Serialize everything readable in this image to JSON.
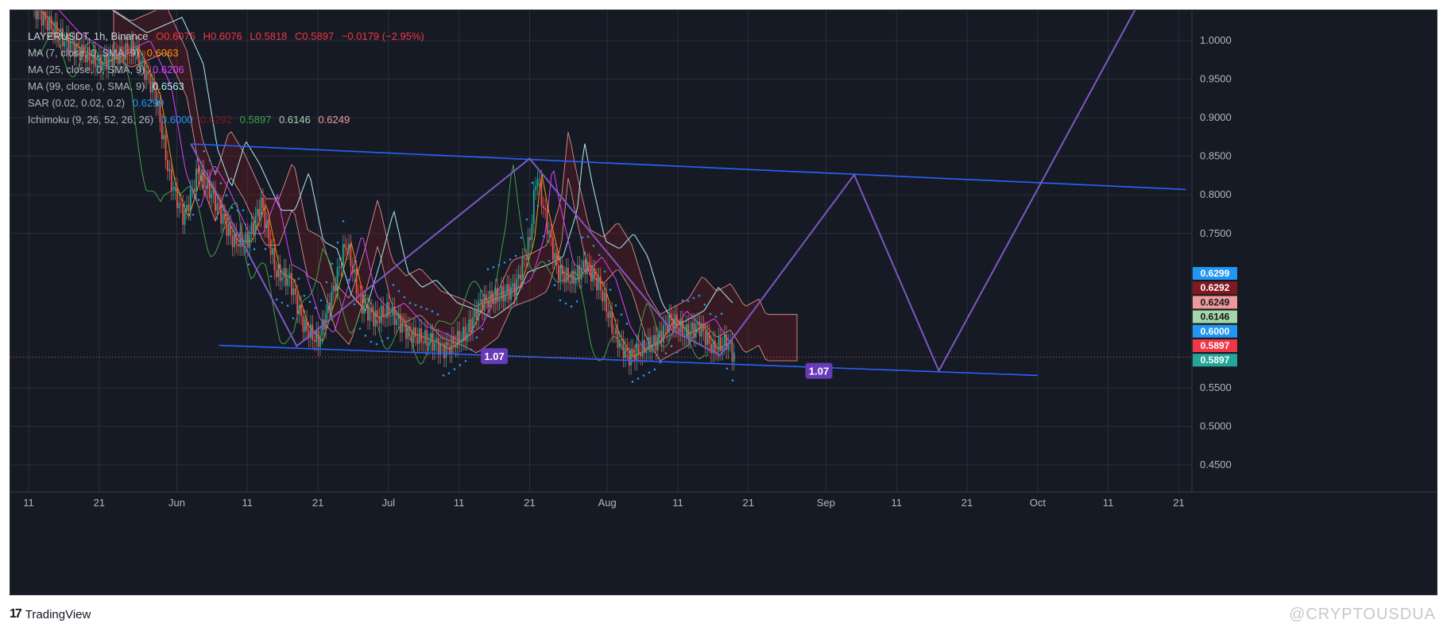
{
  "legend": {
    "symbol_line": [
      "LAYERUSDT, 1h, Binance",
      "O0.6075",
      "H0.6076",
      "L0.5818",
      "C0.5897",
      "−0.0179 (−2.95%)"
    ],
    "ma7": [
      "MA (7, close, 0, SMA, 9)",
      "0.6063"
    ],
    "ma25": [
      "MA (25, close, 0, SMA, 9)",
      "0.6206"
    ],
    "ma99": [
      "MA (99, close, 0, SMA, 9)",
      "0.6563"
    ],
    "sar": [
      "SAR (0.02, 0.02, 0.2)",
      "0.6299"
    ],
    "ichimoku": [
      "Ichimoku (9, 26, 52, 26, 26)",
      "0.6000",
      "0.6292",
      "0.5897",
      "0.6146",
      "0.6249"
    ]
  },
  "footer": {
    "brand": "TradingView",
    "watermark": "@CRYPTOUSDUA"
  },
  "chart_data": {
    "type": "line",
    "title": "LAYERUSDT, 1h, Binance",
    "xlabel": "",
    "ylabel": "",
    "y_axis": {
      "ticks": [
        "1.0000",
        "0.9500",
        "0.9000",
        "0.8500",
        "0.8000",
        "0.7500",
        "0.5500",
        "0.5000",
        "0.4500"
      ],
      "ylim": [
        0.43,
        1.05
      ]
    },
    "x_axis": {
      "ticks": [
        "11",
        "21",
        "Jun",
        "11",
        "21",
        "Jul",
        "11",
        "21",
        "Aug",
        "11",
        "21",
        "Sep",
        "11",
        "21",
        "Oct",
        "11",
        "21"
      ]
    },
    "price_badges": [
      {
        "value": "0.6299",
        "color": "#2196f3"
      },
      {
        "value": "0.6292",
        "color": "#801922"
      },
      {
        "value": "0.6249",
        "color": "#ef9a9a"
      },
      {
        "value": "0.6146",
        "color": "#a5d6a7"
      },
      {
        "value": "0.6000",
        "color": "#2196f3"
      },
      {
        "value": "0.5897",
        "color": "#f23645"
      },
      {
        "value": "0.5897",
        "color": "#26a69a"
      }
    ],
    "annotations": [
      "1.07",
      "1.07"
    ],
    "price_series": [
      [
        "2024-05-11",
        1.05
      ],
      [
        "2024-05-16",
        1.0
      ],
      [
        "2024-05-21",
        0.97
      ],
      [
        "2024-05-26",
        0.99
      ],
      [
        "2024-05-29",
        0.93
      ],
      [
        "2024-05-31",
        0.82
      ],
      [
        "2024-06-02",
        0.77
      ],
      [
        "2024-06-04",
        0.83
      ],
      [
        "2024-06-06",
        0.8
      ],
      [
        "2024-06-09",
        0.74
      ],
      [
        "2024-06-11",
        0.74
      ],
      [
        "2024-06-13",
        0.79
      ],
      [
        "2024-06-15",
        0.7
      ],
      [
        "2024-06-17",
        0.69
      ],
      [
        "2024-06-19",
        0.63
      ],
      [
        "2024-06-21",
        0.61
      ],
      [
        "2024-06-23",
        0.67
      ],
      [
        "2024-06-25",
        0.74
      ],
      [
        "2024-06-27",
        0.66
      ],
      [
        "2024-06-29",
        0.64
      ],
      [
        "2024-07-01",
        0.65
      ],
      [
        "2024-07-04",
        0.62
      ],
      [
        "2024-07-07",
        0.61
      ],
      [
        "2024-07-09",
        0.6
      ],
      [
        "2024-07-12",
        0.62
      ],
      [
        "2024-07-14",
        0.66
      ],
      [
        "2024-07-17",
        0.67
      ],
      [
        "2024-07-19",
        0.68
      ],
      [
        "2024-07-21",
        0.74
      ],
      [
        "2024-07-22",
        0.83
      ],
      [
        "2024-07-23",
        0.78
      ],
      [
        "2024-07-25",
        0.7
      ],
      [
        "2024-07-27",
        0.69
      ],
      [
        "2024-07-29",
        0.71
      ],
      [
        "2024-07-31",
        0.68
      ],
      [
        "2024-08-02",
        0.62
      ],
      [
        "2024-08-04",
        0.59
      ],
      [
        "2024-08-06",
        0.6
      ],
      [
        "2024-08-08",
        0.61
      ],
      [
        "2024-08-10",
        0.64
      ],
      [
        "2024-08-12",
        0.62
      ],
      [
        "2024-08-14",
        0.63
      ],
      [
        "2024-08-16",
        0.6
      ],
      [
        "2024-08-18",
        0.61
      ],
      [
        "2024-08-19",
        0.59
      ]
    ],
    "upper_trendline": [
      [
        "2024-06-03",
        0.866
      ],
      [
        "2024-10-22",
        0.807
      ]
    ],
    "lower_trendline": [
      [
        "2024-06-07",
        0.605
      ],
      [
        "2024-10-01",
        0.566
      ]
    ],
    "zigzag_projection": [
      [
        "2024-06-03",
        0.866
      ],
      [
        "2024-06-18",
        0.604
      ],
      [
        "2024-07-21",
        0.847
      ],
      [
        "2024-08-10",
        0.626
      ],
      [
        "2024-08-17",
        0.592
      ],
      [
        "2024-09-05",
        0.826
      ],
      [
        "2024-09-17",
        0.572
      ],
      [
        "2024-10-15",
        1.043
      ]
    ],
    "current_price": 0.5897,
    "grid": true
  }
}
